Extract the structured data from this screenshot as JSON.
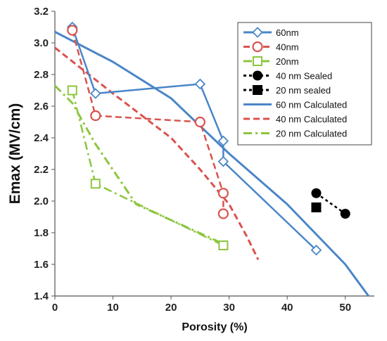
{
  "chart_data": {
    "type": "line",
    "title": "",
    "xlabel": "Porosity (%)",
    "ylabel": "Emax (MV/cm)",
    "xlim": [
      0,
      55
    ],
    "ylim": [
      1.4,
      3.2
    ],
    "xticks": [
      0,
      10,
      20,
      30,
      40,
      50
    ],
    "yticks": [
      1.4,
      1.6,
      1.8,
      2.0,
      2.2,
      2.4,
      2.6,
      2.8,
      3.0,
      3.2
    ],
    "xtick_labels": [
      "0",
      "10",
      "20",
      "30",
      "40",
      "50"
    ],
    "ytick_labels": [
      "1.4",
      "1.6",
      "1.8",
      "2.0",
      "2.2",
      "2.4",
      "2.6",
      "2.8",
      "3.0",
      "3.2"
    ],
    "grid": false,
    "legend_position": "top-right",
    "series": [
      {
        "name": "60nm",
        "color": "#4a86c8",
        "style": "solid",
        "marker": "diamond",
        "x": [
          3,
          7,
          25,
          29,
          29,
          45
        ],
        "y": [
          3.1,
          2.68,
          2.74,
          2.38,
          2.25,
          1.69
        ]
      },
      {
        "name": "40nm",
        "color": "#d9534f",
        "style": "dashed",
        "marker": "circle-open",
        "x": [
          3,
          7,
          25,
          29,
          29
        ],
        "y": [
          3.08,
          2.54,
          2.5,
          2.05,
          1.92
        ]
      },
      {
        "name": "20nm",
        "color": "#8dc63f",
        "style": "dashdot",
        "marker": "square-open",
        "x": [
          3,
          7,
          29
        ],
        "y": [
          2.7,
          2.11,
          1.72
        ]
      },
      {
        "name": "40 nm Sealed",
        "color": "#000000",
        "style": "dotted",
        "marker": "circle-filled",
        "x": [
          45,
          50
        ],
        "y": [
          2.05,
          1.92
        ]
      },
      {
        "name": "20 nm sealed",
        "color": "#000000",
        "style": "dotted",
        "marker": "square-filled",
        "x": [
          45
        ],
        "y": [
          1.96
        ]
      },
      {
        "name": "60 nm Calculated",
        "color": "#4a86c8",
        "style": "solid",
        "marker": "none",
        "x": [
          0,
          10,
          20,
          30,
          40,
          45,
          50,
          54
        ],
        "y": [
          3.07,
          2.88,
          2.65,
          2.3,
          1.98,
          1.79,
          1.6,
          1.4
        ]
      },
      {
        "name": "40 nm Calculated",
        "color": "#d9534f",
        "style": "dashed",
        "marker": "none",
        "x": [
          0,
          10,
          20,
          25,
          30,
          33,
          35
        ],
        "y": [
          2.97,
          2.68,
          2.4,
          2.2,
          1.98,
          1.78,
          1.63
        ]
      },
      {
        "name": "20 nm Calculated",
        "color": "#8dc63f",
        "style": "dashdot",
        "marker": "none",
        "x": [
          0,
          3,
          7,
          14,
          29
        ],
        "y": [
          2.73,
          2.62,
          2.36,
          1.98,
          1.73
        ]
      }
    ]
  }
}
